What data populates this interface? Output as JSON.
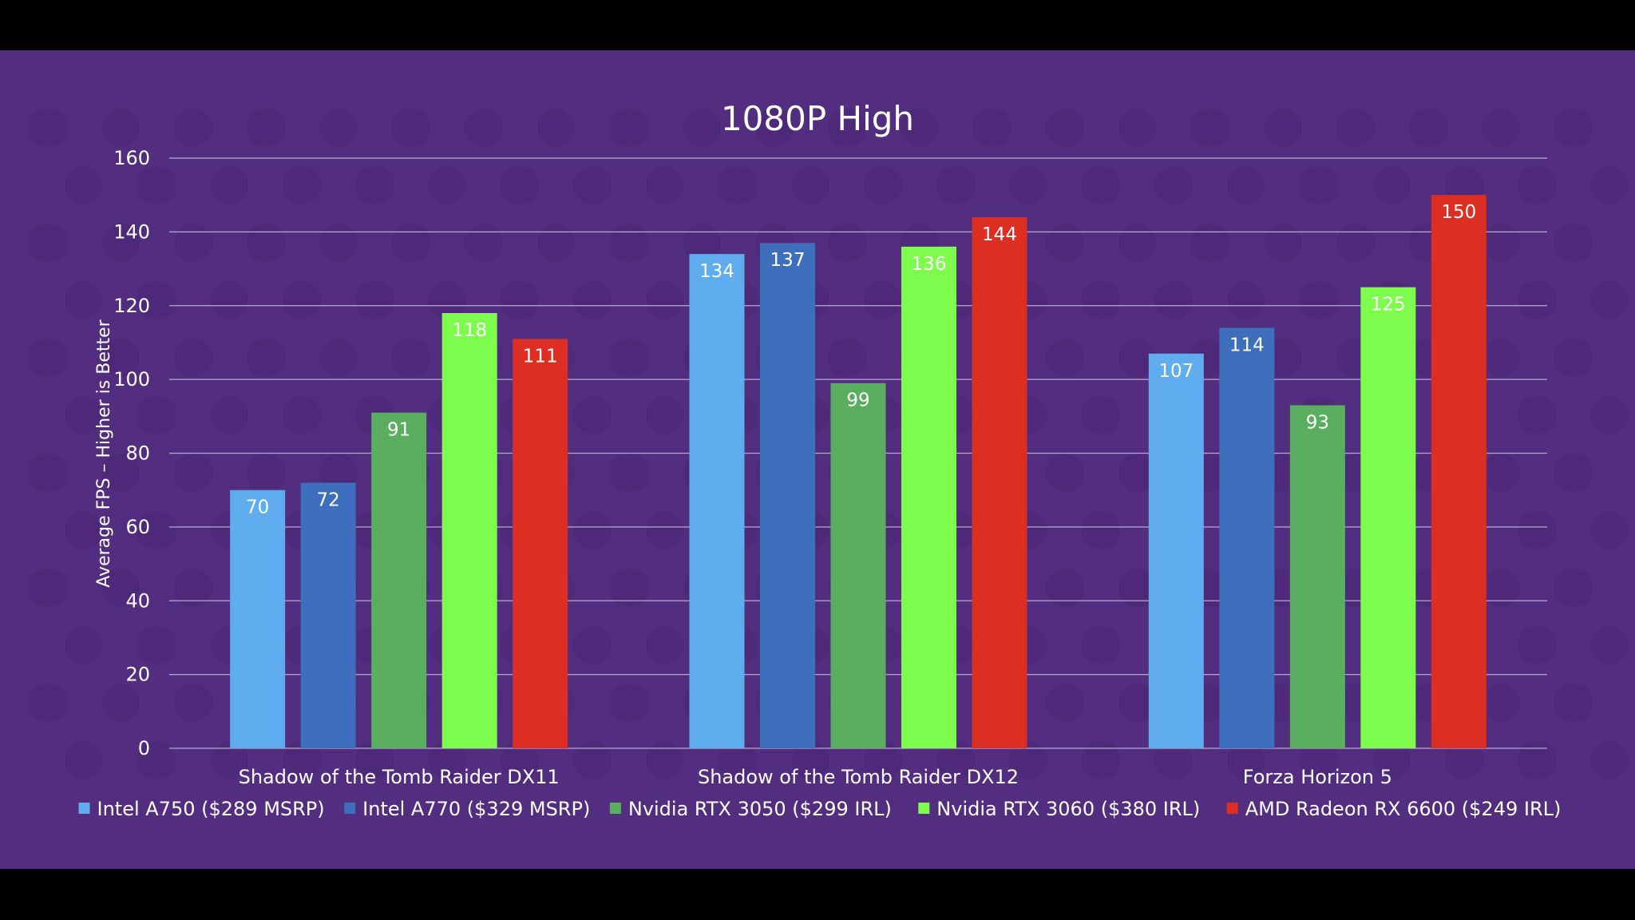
{
  "colors": {
    "page_background": "#000000",
    "panel_background": "#532d7f",
    "watermark": "#4a2775",
    "gridline": "#b9a8d0",
    "text": "#ffffff",
    "series": [
      "#5fadee",
      "#3e6fbc",
      "#5bae5f",
      "#7efc4d",
      "#dc2e22"
    ]
  },
  "watermark_icon": "ltt-logo-icon",
  "chart_data": {
    "type": "bar",
    "title": "1080P High",
    "xlabel": "",
    "ylabel": "Average FPS – Higher is Better",
    "ylim": [
      0,
      160
    ],
    "yticks": [
      0,
      20,
      40,
      60,
      80,
      100,
      120,
      140,
      160
    ],
    "grid": true,
    "legend_position": "bottom",
    "categories": [
      "Shadow of the Tomb Raider DX11",
      "Shadow of the Tomb Raider DX12",
      "Forza Horizon 5"
    ],
    "series": [
      {
        "name": "Intel A750 ($289 MSRP)",
        "values": [
          70,
          134,
          107
        ]
      },
      {
        "name": "Intel A770 ($329 MSRP)",
        "values": [
          72,
          137,
          114
        ]
      },
      {
        "name": "Nvidia RTX 3050 ($299 IRL)",
        "values": [
          91,
          99,
          93
        ]
      },
      {
        "name": "Nvidia RTX 3060 ($380 IRL)",
        "values": [
          118,
          136,
          125
        ]
      },
      {
        "name": "AMD Radeon RX 6600 ($249 IRL)",
        "values": [
          111,
          144,
          150
        ]
      }
    ]
  }
}
